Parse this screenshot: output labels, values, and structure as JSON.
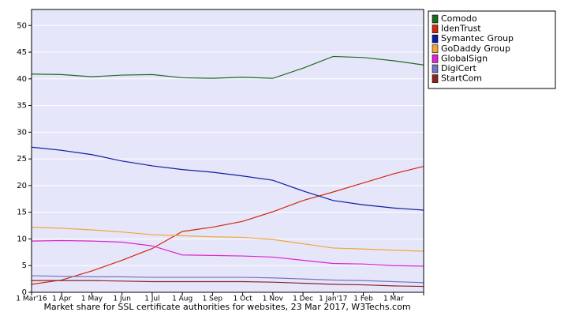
{
  "chart_data": {
    "type": "line",
    "caption": "Market share for SSL certificate authorities for websites, 23 Mar 2017, W3Techs.com",
    "categories": [
      "1 Mar'16",
      "1 Apr",
      "1 May",
      "1 Jun",
      "1 Jul",
      "1 Aug",
      "1 Sep",
      "1 Oct",
      "1 Nov",
      "1 Dec",
      "1 Jan'17",
      "1 Feb",
      "1 Mar",
      null
    ],
    "series": [
      {
        "name": "Comodo",
        "color": "#1e6b1e",
        "values": [
          40.9,
          40.8,
          40.4,
          40.7,
          40.8,
          40.2,
          40.1,
          40.3,
          40.1,
          42.0,
          44.2,
          44.0,
          43.4,
          42.6
        ]
      },
      {
        "name": "IdenTrust",
        "color": "#d0290f",
        "values": [
          1.5,
          2.3,
          4.0,
          6.0,
          8.2,
          11.4,
          12.2,
          13.3,
          15.1,
          17.2,
          18.8,
          20.5,
          22.2,
          23.6
        ]
      },
      {
        "name": "Symantec Group",
        "color": "#0c1ea0",
        "values": [
          27.2,
          26.6,
          25.8,
          24.6,
          23.7,
          23.0,
          22.5,
          21.8,
          21.0,
          19.0,
          17.2,
          16.4,
          15.8,
          15.4
        ]
      },
      {
        "name": "GoDaddy Group",
        "color": "#f0a638",
        "values": [
          12.2,
          12.0,
          11.7,
          11.3,
          10.8,
          10.6,
          10.4,
          10.3,
          9.9,
          9.1,
          8.3,
          8.1,
          7.9,
          7.7
        ]
      },
      {
        "name": "GlobalSign",
        "color": "#dc24d0",
        "values": [
          9.6,
          9.7,
          9.6,
          9.4,
          8.7,
          7.0,
          6.9,
          6.8,
          6.6,
          6.0,
          5.4,
          5.3,
          5.0,
          4.9
        ]
      },
      {
        "name": "DigiCert",
        "color": "#7474c4",
        "values": [
          3.1,
          3.0,
          2.9,
          2.9,
          2.8,
          2.8,
          2.8,
          2.8,
          2.7,
          2.5,
          2.3,
          2.2,
          2.0,
          1.8
        ]
      },
      {
        "name": "StartCom",
        "color": "#8c2424",
        "values": [
          2.2,
          2.2,
          2.2,
          2.1,
          2.0,
          2.0,
          2.0,
          2.0,
          1.9,
          1.7,
          1.5,
          1.4,
          1.2,
          1.1
        ]
      }
    ],
    "ylim": [
      0,
      53
    ],
    "yticks": [
      0,
      5,
      10,
      15,
      20,
      25,
      30,
      35,
      40,
      45,
      50
    ],
    "grid": true,
    "background": "#e6e6fa",
    "legend": "outside-top-right"
  }
}
